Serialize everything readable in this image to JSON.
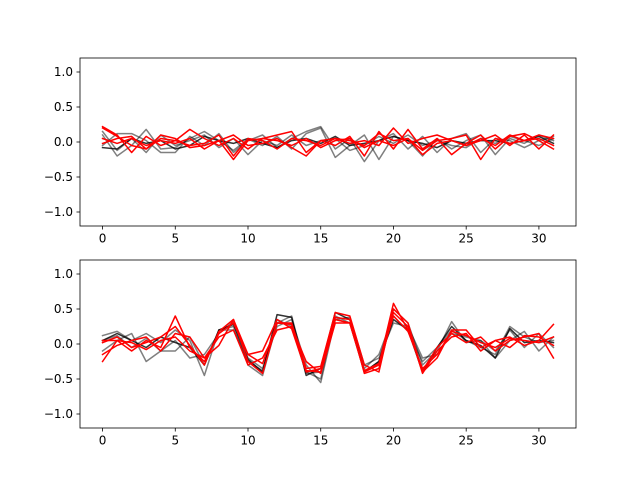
{
  "figure": {
    "background": "#ffffff"
  },
  "chart_data": [
    {
      "type": "line",
      "title": "",
      "xlabel": "",
      "ylabel": "",
      "xlim": [
        -1.55,
        32.55
      ],
      "ylim": [
        -1.2,
        1.2
      ],
      "xticks": [
        0,
        5,
        10,
        15,
        20,
        25,
        30
      ],
      "yticks": [
        -1.0,
        -0.5,
        0.0,
        0.5,
        1.0
      ],
      "xtick_labels": [
        "0",
        "5",
        "10",
        "15",
        "20",
        "25",
        "30"
      ],
      "ytick_labels": [
        "−1.0",
        "−0.5",
        "0.0",
        "0.5",
        "1.0"
      ],
      "grid": false,
      "legend": "none",
      "x": [
        0,
        1,
        2,
        3,
        4,
        5,
        6,
        7,
        8,
        9,
        10,
        11,
        12,
        13,
        14,
        15,
        16,
        17,
        18,
        19,
        20,
        21,
        22,
        23,
        24,
        25,
        26,
        27,
        28,
        29,
        30,
        31
      ],
      "series": [
        {
          "color": "#000000",
          "opacity": 0.5,
          "values": [
            0.1,
            -0.2,
            -0.05,
            0.18,
            -0.1,
            -0.08,
            0.05,
            0.15,
            0.02,
            -0.12,
            0.04,
            -0.05,
            0.08,
            -0.1,
            0.12,
            0.2,
            -0.22,
            -0.05,
            0.1,
            -0.25,
            0.08,
            0.02,
            -0.2,
            0.05,
            -0.1,
            0.02,
            0.1,
            -0.18,
            0.05,
            -0.02,
            0.1,
            0.02
          ]
        },
        {
          "color": "#000000",
          "opacity": 0.5,
          "values": [
            -0.05,
            0.12,
            0.12,
            0.02,
            -0.15,
            -0.15,
            0.08,
            -0.05,
            0.12,
            -0.15,
            0.02,
            0.1,
            -0.08,
            0.05,
            0.15,
            0.22,
            -0.1,
            0.05,
            -0.28,
            0.02,
            0.12,
            -0.1,
            0.08,
            -0.15,
            0.05,
            0.12,
            -0.15,
            0.05,
            0.02,
            -0.08,
            0.02,
            0.08
          ]
        },
        {
          "color": "#000000",
          "opacity": 0.5,
          "values": [
            0.15,
            -0.12,
            0.05,
            -0.15,
            0.1,
            -0.05,
            0.02,
            0.1,
            -0.08,
            0.05,
            -0.18,
            0.02,
            -0.05,
            0.1,
            -0.05,
            0.02,
            0.05,
            -0.12,
            -0.05,
            0.08,
            -0.02,
            0.1,
            -0.05,
            0.02,
            -0.05,
            -0.08,
            0.05,
            -0.02,
            0.08,
            0.02,
            -0.05,
            0.05
          ]
        },
        {
          "color": "#000000",
          "opacity": 0.8,
          "values": [
            -0.08,
            -0.1,
            0.05,
            -0.02,
            0.02,
            -0.1,
            -0.05,
            0.08,
            0.02,
            -0.02,
            0.05,
            -0.02,
            -0.08,
            0.02,
            0.05,
            -0.02,
            0.08,
            -0.05,
            -0.02,
            0.02,
            0.08,
            0.02,
            -0.02,
            -0.08,
            0.02,
            -0.02,
            0.02,
            0.02,
            -0.02,
            0.02,
            0.08,
            -0.02
          ]
        },
        {
          "color": "#ff0000",
          "opacity": 1.0,
          "values": [
            0.22,
            0.1,
            -0.15,
            0.08,
            -0.05,
            0.02,
            0.18,
            0.05,
            -0.05,
            0.05,
            -0.1,
            0.05,
            0.1,
            0.15,
            -0.15,
            0.02,
            -0.05,
            0.08,
            -0.2,
            0.15,
            -0.1,
            0.18,
            -0.1,
            0.05,
            -0.18,
            -0.02,
            0.1,
            -0.1,
            0.08,
            0.12,
            0.02,
            -0.1
          ]
        },
        {
          "color": "#ff0000",
          "opacity": 1.0,
          "values": [
            -0.02,
            0.05,
            0.08,
            -0.1,
            0.05,
            0.02,
            -0.05,
            -0.02,
            0.1,
            -0.2,
            0.05,
            0.02,
            -0.1,
            0.05,
            0.02,
            -0.05,
            0.05,
            -0.02,
            0.02,
            -0.05,
            0.2,
            -0.02,
            0.05,
            0.1,
            0.02,
            -0.05,
            0.02,
            0.1,
            -0.05,
            0.1,
            -0.1,
            0.1
          ]
        },
        {
          "color": "#ff0000",
          "opacity": 1.0,
          "values": [
            0.2,
            0.08,
            -0.05,
            -0.1,
            0.1,
            0.05,
            -0.08,
            -0.05,
            0.02,
            0.1,
            -0.05,
            -0.02,
            0.05,
            -0.08,
            -0.2,
            0.02,
            0.05,
            0.02,
            -0.05,
            0.12,
            0.02,
            0.05,
            -0.12,
            0.02,
            0.05,
            0.1,
            -0.25,
            0.05,
            -0.02,
            0.02,
            0.1,
            0.05
          ]
        },
        {
          "color": "#ff0000",
          "opacity": 1.0,
          "values": [
            0.05,
            -0.02,
            0.05,
            -0.05,
            0.02,
            -0.02,
            0.05,
            -0.1,
            0.02,
            -0.25,
            0.02,
            0.05,
            0.02,
            -0.05,
            0.05,
            -0.08,
            0.02,
            0.05,
            -0.08,
            0.02,
            -0.05,
            0.05,
            -0.18,
            -0.02,
            0.02,
            -0.05,
            0.05,
            -0.05,
            0.1,
            0.02,
            0.05,
            -0.05
          ]
        }
      ]
    },
    {
      "type": "line",
      "title": "",
      "xlabel": "",
      "ylabel": "",
      "xlim": [
        -1.55,
        32.55
      ],
      "ylim": [
        -1.2,
        1.2
      ],
      "xticks": [
        0,
        5,
        10,
        15,
        20,
        25,
        30
      ],
      "yticks": [
        -1.0,
        -0.5,
        0.0,
        0.5,
        1.0
      ],
      "xtick_labels": [
        "0",
        "5",
        "10",
        "15",
        "20",
        "25",
        "30"
      ],
      "ytick_labels": [
        "−1.0",
        "−0.5",
        "0.0",
        "0.5",
        "1.0"
      ],
      "grid": false,
      "legend": "none",
      "x": [
        0,
        1,
        2,
        3,
        4,
        5,
        6,
        7,
        8,
        9,
        10,
        11,
        12,
        13,
        14,
        15,
        16,
        17,
        18,
        19,
        20,
        21,
        22,
        23,
        24,
        25,
        26,
        27,
        28,
        29,
        30,
        31
      ],
      "series": [
        {
          "color": "#000000",
          "opacity": 0.5,
          "values": [
            0.12,
            0.18,
            0.05,
            0.15,
            0.02,
            0.2,
            0.05,
            -0.45,
            0.2,
            0.25,
            -0.3,
            -0.45,
            0.3,
            0.4,
            -0.4,
            -0.5,
            0.4,
            0.3,
            -0.4,
            -0.25,
            0.5,
            0.3,
            -0.3,
            -0.1,
            0.32,
            0.02,
            0.05,
            -0.1,
            0.2,
            -0.05,
            0.15,
            -0.05
          ]
        },
        {
          "color": "#000000",
          "opacity": 0.5,
          "values": [
            -0.1,
            0.05,
            0.15,
            -0.25,
            -0.1,
            0.05,
            -0.2,
            -0.15,
            0.15,
            0.32,
            -0.2,
            -0.35,
            0.25,
            0.35,
            -0.3,
            -0.55,
            0.35,
            0.38,
            -0.3,
            -0.2,
            0.3,
            0.25,
            -0.2,
            -0.15,
            0.15,
            0.1,
            0.05,
            -0.2,
            0.05,
            0.18,
            -0.1,
            0.1
          ]
        },
        {
          "color": "#000000",
          "opacity": 0.5,
          "values": [
            0.05,
            0.12,
            -0.05,
            0.08,
            -0.1,
            -0.1,
            0.1,
            -0.3,
            0.2,
            0.2,
            -0.25,
            -0.38,
            0.35,
            0.25,
            -0.42,
            -0.4,
            0.35,
            0.3,
            -0.35,
            -0.15,
            0.4,
            0.18,
            -0.25,
            -0.05,
            0.2,
            0.05,
            -0.05,
            -0.15,
            0.25,
            0.1,
            0.02,
            0.05
          ]
        },
        {
          "color": "#000000",
          "opacity": 0.8,
          "values": [
            0.05,
            0.15,
            0.05,
            -0.05,
            0.1,
            0.02,
            -0.05,
            -0.3,
            0.2,
            0.28,
            -0.22,
            -0.4,
            0.42,
            0.38,
            -0.45,
            -0.35,
            0.45,
            0.35,
            -0.4,
            -0.25,
            0.35,
            0.2,
            -0.4,
            -0.05,
            0.25,
            0.05,
            -0.02,
            -0.2,
            0.22,
            0.02,
            0.05,
            0.02
          ]
        },
        {
          "color": "#ff0000",
          "opacity": 1.0,
          "values": [
            -0.25,
            0.05,
            -0.1,
            0.05,
            -0.05,
            0.4,
            -0.05,
            -0.25,
            0.15,
            0.3,
            -0.15,
            -0.1,
            0.35,
            0.22,
            -0.4,
            -0.35,
            0.35,
            0.3,
            -0.4,
            -0.3,
            0.58,
            0.2,
            -0.38,
            -0.05,
            0.15,
            0.02,
            0.1,
            -0.1,
            0.05,
            0.1,
            0.15,
            -0.2
          ]
        },
        {
          "color": "#ff0000",
          "opacity": 1.0,
          "values": [
            -0.15,
            -0.02,
            0.05,
            0.1,
            -0.1,
            0.15,
            0.1,
            -0.2,
            -0.02,
            0.35,
            -0.15,
            -0.28,
            0.3,
            0.3,
            -0.35,
            -0.32,
            0.45,
            0.4,
            -0.3,
            -0.4,
            0.5,
            0.3,
            -0.4,
            -0.2,
            0.2,
            0.2,
            -0.05,
            0.05,
            0.1,
            -0.02,
            0.05,
            0.28
          ]
        },
        {
          "color": "#ff0000",
          "opacity": 1.0,
          "values": [
            0.02,
            0.1,
            -0.05,
            0.02,
            0.1,
            0.25,
            -0.02,
            -0.3,
            0.18,
            0.35,
            -0.25,
            -0.42,
            0.3,
            0.28,
            -0.38,
            -0.4,
            0.38,
            0.35,
            -0.42,
            -0.35,
            0.45,
            0.25,
            -0.42,
            -0.1,
            0.1,
            0.15,
            -0.1,
            0.05,
            -0.05,
            0.12,
            0.1,
            -0.02
          ]
        },
        {
          "color": "#ff0000",
          "opacity": 1.0,
          "values": [
            0.05,
            0.05,
            0.02,
            -0.08,
            0.05,
            0.1,
            -0.1,
            -0.2,
            0.1,
            0.2,
            -0.3,
            -0.2,
            0.2,
            0.25,
            -0.25,
            -0.42,
            0.3,
            0.3,
            -0.38,
            -0.28,
            0.4,
            0.18,
            -0.35,
            -0.15,
            0.18,
            0.12,
            0.02,
            -0.05,
            0.08,
            0.05,
            0.02,
            0.1
          ]
        }
      ]
    }
  ]
}
